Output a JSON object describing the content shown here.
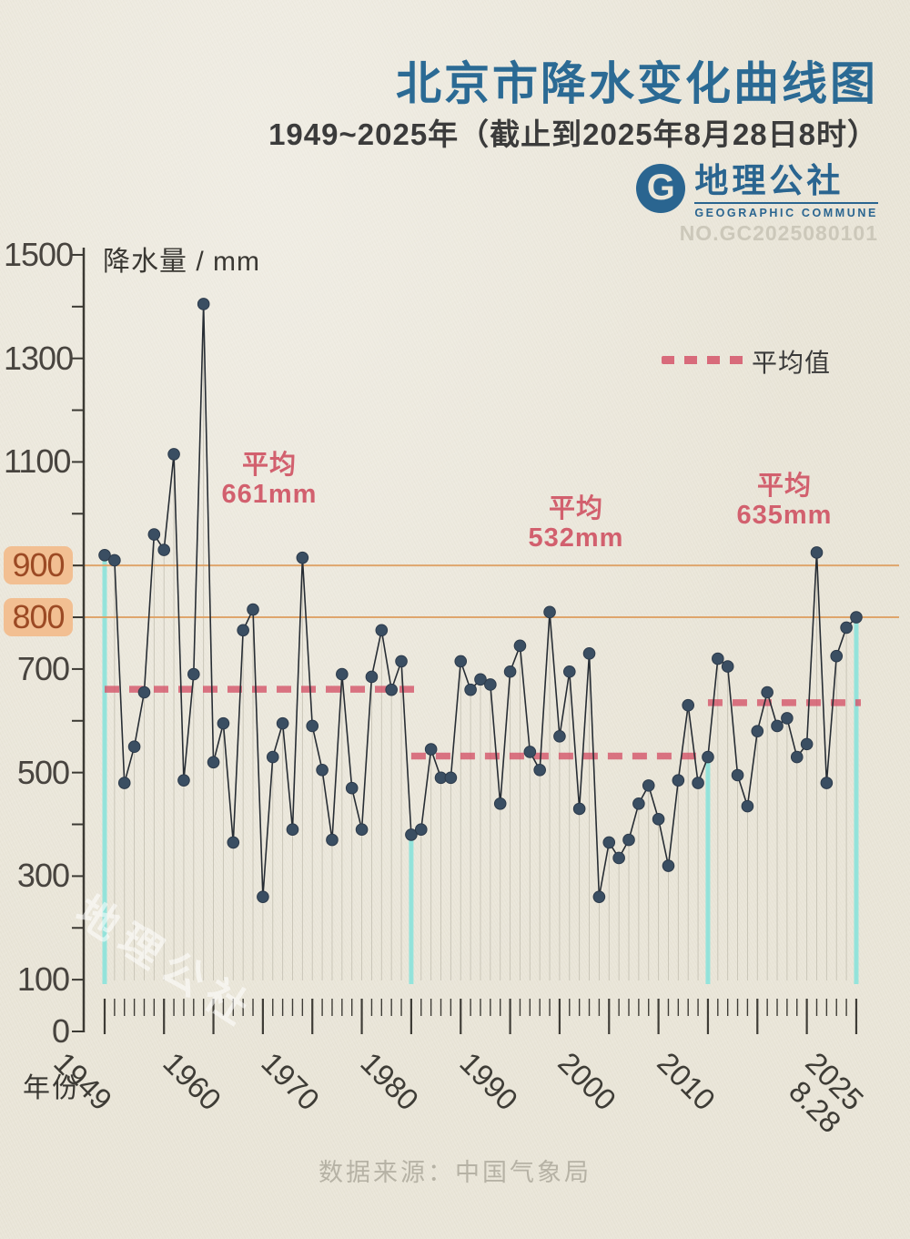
{
  "header": {
    "title": "北京市降水变化曲线图",
    "subtitle": "1949~2025年（截止到2025年8月28日8时）",
    "logo": {
      "monogram": "G",
      "name_cn": "地理公社",
      "name_en": "GEOGRAPHIC COMMUNE",
      "serial": "NO.GC2025080101"
    }
  },
  "chart": {
    "y_axis_title": "降水量 / mm",
    "x_axis_title": "年份",
    "legend_label": "平均值",
    "period_labels": [
      {
        "line1": "平均",
        "line2": "661mm"
      },
      {
        "line1": "平均",
        "line2": "532mm"
      },
      {
        "line1": "平均",
        "line2": "635mm"
      }
    ]
  },
  "chart_data": {
    "type": "line",
    "title": "北京市降水变化曲线图 1949~2025年（截止到2025年8月28日8时）",
    "xlabel": "年份",
    "ylabel": "降水量 / mm",
    "ylim": [
      0,
      1500
    ],
    "years": [
      1949,
      1950,
      1951,
      1952,
      1953,
      1954,
      1955,
      1956,
      1957,
      1958,
      1959,
      1960,
      1961,
      1962,
      1963,
      1964,
      1965,
      1966,
      1967,
      1968,
      1969,
      1970,
      1971,
      1972,
      1973,
      1974,
      1975,
      1976,
      1977,
      1978,
      1979,
      1980,
      1981,
      1982,
      1983,
      1984,
      1985,
      1986,
      1987,
      1988,
      1989,
      1990,
      1991,
      1992,
      1993,
      1994,
      1995,
      1996,
      1997,
      1998,
      1999,
      2000,
      2001,
      2002,
      2003,
      2004,
      2005,
      2006,
      2007,
      2008,
      2009,
      2010,
      2011,
      2012,
      2013,
      2014,
      2015,
      2016,
      2017,
      2018,
      2019,
      2020,
      2021,
      2022,
      2023,
      2024,
      2025
    ],
    "values": [
      920,
      910,
      480,
      550,
      655,
      960,
      930,
      1115,
      485,
      690,
      1405,
      520,
      595,
      365,
      775,
      815,
      260,
      530,
      595,
      390,
      915,
      590,
      505,
      370,
      690,
      470,
      390,
      685,
      775,
      660,
      715,
      380,
      390,
      545,
      490,
      490,
      715,
      660,
      680,
      670,
      440,
      695,
      745,
      540,
      505,
      810,
      570,
      695,
      430,
      730,
      260,
      365,
      335,
      370,
      440,
      475,
      410,
      320,
      485,
      630,
      480,
      530,
      720,
      705,
      495,
      435,
      580,
      655,
      590,
      605,
      530,
      555,
      925,
      480,
      725,
      780,
      800
    ],
    "y_axis_labels": [
      {
        "value": 1500
      },
      {
        "value": 1300
      },
      {
        "value": 1100
      },
      {
        "value": 900,
        "highlight": true
      },
      {
        "value": 800,
        "highlight": true
      },
      {
        "value": 700
      },
      {
        "value": 500
      },
      {
        "value": 300
      },
      {
        "value": 100
      },
      {
        "value": 0
      }
    ],
    "x_axis_labels": [
      {
        "year": 1949,
        "text": "1949"
      },
      {
        "year": 1960,
        "text": "1960"
      },
      {
        "year": 1970,
        "text": "1970"
      },
      {
        "year": 1980,
        "text": "1980"
      },
      {
        "year": 1990,
        "text": "1990"
      },
      {
        "year": 2000,
        "text": "2000"
      },
      {
        "year": 2010,
        "text": "2010"
      },
      {
        "year": 2025,
        "text": "2025",
        "sub": "8.28"
      }
    ],
    "major_tick_years": [
      1949,
      1955,
      1960,
      1965,
      1970,
      1975,
      1980,
      1985,
      1990,
      1995,
      2000,
      2005,
      2010,
      2015,
      2020,
      2025
    ],
    "reference_lines": [
      900,
      800
    ],
    "average_segments": [
      {
        "from_year": 1949,
        "to_year": 1980,
        "value": 661,
        "label": "平均 661mm"
      },
      {
        "from_year": 1980,
        "to_year": 2010,
        "value": 532,
        "label": "平均 532mm"
      },
      {
        "from_year": 2010,
        "to_year": 2025,
        "value": 635,
        "label": "平均 635mm"
      }
    ],
    "divider_years": [
      1949,
      1980,
      2010,
      2025
    ],
    "legend": {
      "label": "平均值",
      "position": "top-right"
    },
    "grid": "per-year vertical drop lines"
  },
  "footer": {
    "source": "数据来源：中国气象局"
  },
  "watermark": "地理公社",
  "colors": {
    "background": "#eae6d9",
    "title_blue": "#2b6a94",
    "point": "#3a4e62",
    "line": "#272d34",
    "average_dash": "#d5556a",
    "reference_orange": "#dfa266",
    "divider_cyan": "#8ce4dc",
    "highlight_pill": "#f2bf92",
    "pink_label": "#d2606e",
    "axis": "#3b3933",
    "drop_line": "#c3bfb1"
  }
}
